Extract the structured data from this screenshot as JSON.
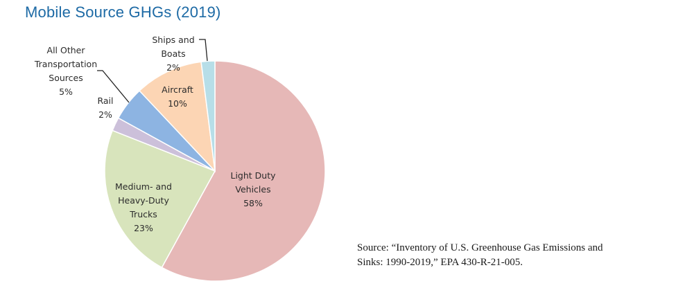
{
  "title": "Mobile Source GHGs (2019)",
  "source_line1": "Source: “Inventory of U.S. Greenhouse Gas Emissions and",
  "source_line2": "Sinks: 1990-2019,” EPA 430-R-21-005.",
  "chart_data": {
    "type": "pie",
    "title": "Mobile Source GHGs (2019)",
    "unit": "%",
    "slices": [
      {
        "name": "Light Duty Vehicles",
        "value": 58,
        "label_lines": [
          "Light Duty",
          "Vehicles",
          "58%"
        ],
        "color": "#E6B8B7"
      },
      {
        "name": "Medium- and Heavy-Duty Trucks",
        "value": 23,
        "label_lines": [
          "Medium- and",
          "Heavy-Duty",
          "Trucks",
          "23%"
        ],
        "color": "#D8E4BC"
      },
      {
        "name": "Rail",
        "value": 2,
        "label_lines": [
          "Rail",
          "2%"
        ],
        "color": "#CCC0DA"
      },
      {
        "name": "All Other Transportation Sources",
        "value": 5,
        "label_lines": [
          "All Other",
          "Transportation",
          "Sources",
          "5%"
        ],
        "color": "#8DB4E2"
      },
      {
        "name": "Aircraft",
        "value": 10,
        "label_lines": [
          "Aircraft",
          "10%"
        ],
        "color": "#FCD5B4"
      },
      {
        "name": "Ships and Boats",
        "value": 2,
        "label_lines": [
          "Ships and",
          "Boats",
          "2%"
        ],
        "color": "#B7DEE8"
      }
    ],
    "start_angle": "12 o'clock",
    "direction": "clockwise",
    "legend": "none (data labels)"
  }
}
